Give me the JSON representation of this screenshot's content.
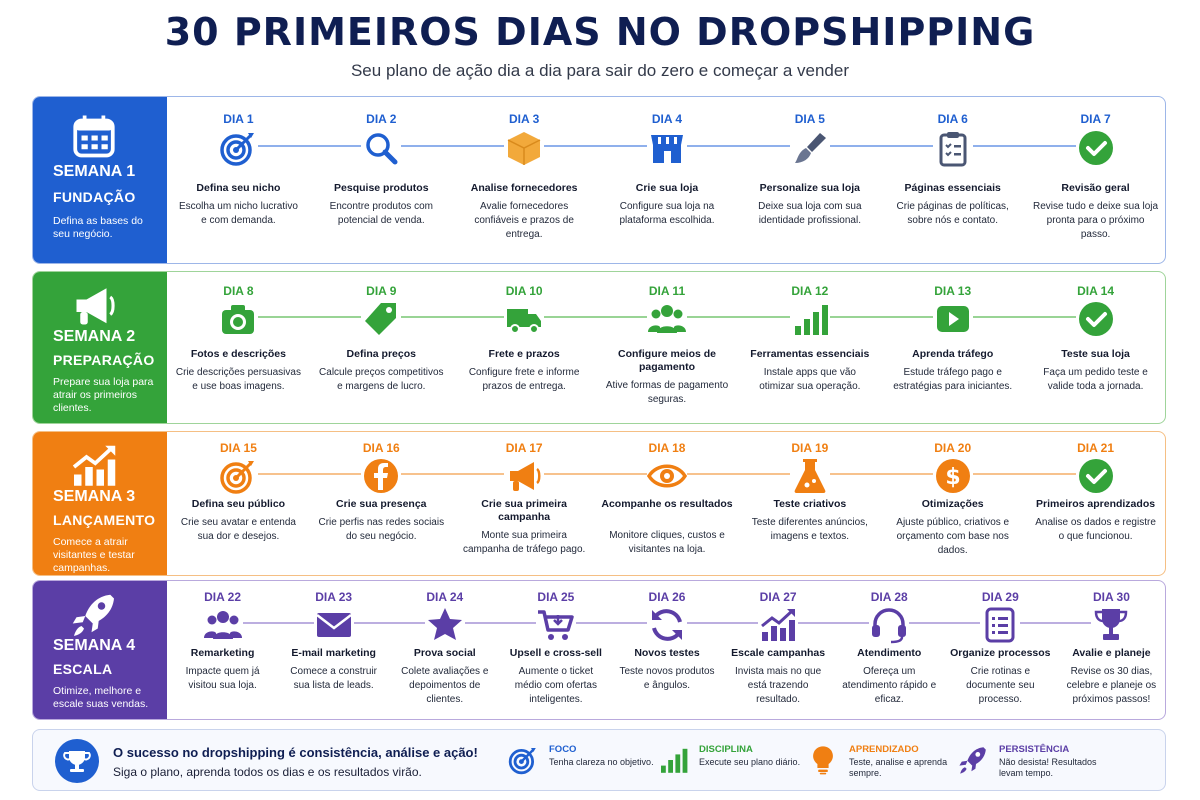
{
  "header": {
    "title": "30 PRIMEIROS DIAS NO DROPSHIPPING",
    "subtitle": "Seu plano de ação dia a dia para sair do zero e começar a vender"
  },
  "colors": {
    "week1": "#1f5fd0",
    "week2": "#34a33a",
    "week3": "#f07f12",
    "week4": "#5b3ea6",
    "title": "#0f1e52"
  },
  "weeks": [
    {
      "label": "SEMANA 1",
      "phase": "FUNDAÇÃO",
      "description": "Defina as bases do seu negócio.",
      "icon": "calendar-icon",
      "days": [
        {
          "day": "DIA 1",
          "title": "Defina seu nicho",
          "text": "Escolha um nicho lucrativo e com demanda.",
          "icon": "target-icon"
        },
        {
          "day": "DIA 2",
          "title": "Pesquise produtos",
          "text": "Encontre produtos com potencial de venda.",
          "icon": "search-icon"
        },
        {
          "day": "DIA 3",
          "title": "Analise fornecedores",
          "text": "Avalie fornecedores confiáveis e prazos de entrega.",
          "icon": "box-icon"
        },
        {
          "day": "DIA 4",
          "title": "Crie sua loja",
          "text": "Configure sua loja na plataforma escolhida.",
          "icon": "store-icon"
        },
        {
          "day": "DIA 5",
          "title": "Personalize sua loja",
          "text": "Deixe sua loja com sua identidade profissional.",
          "icon": "brush-icon"
        },
        {
          "day": "DIA 6",
          "title": "Páginas essenciais",
          "text": "Crie páginas de políticas, sobre nós e contato.",
          "icon": "clipboard-icon"
        },
        {
          "day": "DIA 7",
          "title": "Revisão geral",
          "text": "Revise tudo e deixe sua loja pronta para o próximo passo.",
          "icon": "check-icon"
        }
      ]
    },
    {
      "label": "SEMANA 2",
      "phase": "PREPARAÇÃO",
      "description": "Prepare sua loja para atrair os primeiros clientes.",
      "icon": "megaphone-icon",
      "days": [
        {
          "day": "DIA 8",
          "title": "Fotos e descrições",
          "text": "Crie descrições persuasivas e use boas imagens.",
          "icon": "camera-icon"
        },
        {
          "day": "DIA 9",
          "title": "Defina preços",
          "text": "Calcule preços competitivos e margens de lucro.",
          "icon": "tag-icon"
        },
        {
          "day": "DIA 10",
          "title": "Frete e prazos",
          "text": "Configure frete e informe prazos de entrega.",
          "icon": "truck-icon"
        },
        {
          "day": "DIA 11",
          "title": "Configure meios de pagamento",
          "text": "Ative formas de pagamento seguras.",
          "icon": "people-icon"
        },
        {
          "day": "DIA 12",
          "title": "Ferramentas essenciais",
          "text": "Instale apps que vão otimizar sua operação.",
          "icon": "bars-icon"
        },
        {
          "day": "DIA 13",
          "title": "Aprenda tráfego",
          "text": "Estude tráfego pago e estratégias para iniciantes.",
          "icon": "play-icon"
        },
        {
          "day": "DIA 14",
          "title": "Teste sua loja",
          "text": "Faça um pedido teste e valide toda a jornada.",
          "icon": "check-icon"
        }
      ]
    },
    {
      "label": "SEMANA 3",
      "phase": "LANÇAMENTO",
      "description": "Comece a atrair visitantes e testar campanhas.",
      "icon": "growth-chart-icon",
      "days": [
        {
          "day": "DIA 15",
          "title": "Defina seu público",
          "text": "Crie seu avatar e entenda sua dor e desejos.",
          "icon": "target-icon"
        },
        {
          "day": "DIA 16",
          "title": "Crie sua presença",
          "text": "Crie perfis nas redes sociais do seu negócio.",
          "icon": "facebook-icon"
        },
        {
          "day": "DIA 17",
          "title": "Crie sua primeira campanha",
          "text": "Monte sua primeira campanha de tráfego pago.",
          "icon": "megaphone-icon"
        },
        {
          "day": "DIA 18",
          "title": "Acompanhe os resultados",
          "text": "Monitore cliques, custos e visitantes na loja.",
          "icon": "eye-icon"
        },
        {
          "day": "DIA 19",
          "title": "Teste criativos",
          "text": "Teste diferentes anúncios, imagens e textos.",
          "icon": "flask-icon"
        },
        {
          "day": "DIA 20",
          "title": "Otimizações",
          "text": "Ajuste público, criativos e orçamento com base nos dados.",
          "icon": "dollar-icon"
        },
        {
          "day": "DIA 21",
          "title": "Primeiros aprendizados",
          "text": "Analise os dados e registre o que funcionou.",
          "icon": "check-icon"
        }
      ]
    },
    {
      "label": "SEMANA 4",
      "phase": "ESCALA",
      "description": "Otimize, melhore e escale suas vendas.",
      "icon": "rocket-icon",
      "days": [
        {
          "day": "DIA 22",
          "title": "Remarketing",
          "text": "Impacte quem já visitou sua loja.",
          "icon": "people-icon"
        },
        {
          "day": "DIA 23",
          "title": "E-mail marketing",
          "text": "Comece a construir sua lista de leads.",
          "icon": "envelope-icon"
        },
        {
          "day": "DIA 24",
          "title": "Prova social",
          "text": "Colete avaliações e depoimentos de clientes.",
          "icon": "star-icon"
        },
        {
          "day": "DIA 25",
          "title": "Upsell e cross-sell",
          "text": "Aumente o ticket médio com ofertas inteligentes.",
          "icon": "cart-icon"
        },
        {
          "day": "DIA 26",
          "title": "Novos testes",
          "text": "Teste novos produtos e ângulos.",
          "icon": "refresh-icon"
        },
        {
          "day": "DIA 27",
          "title": "Escale campanhas",
          "text": "Invista mais no que está trazendo resultado.",
          "icon": "growth-chart-icon"
        },
        {
          "day": "DIA 28",
          "title": "Atendimento",
          "text": "Ofereça um atendimento rápido e eficaz.",
          "icon": "headset-icon"
        },
        {
          "day": "DIA 29",
          "title": "Organize processos",
          "text": "Crie rotinas e documente seu processo.",
          "icon": "list-icon"
        },
        {
          "day": "DIA 30",
          "title": "Avalie e planeje",
          "text": "Revise os 30 dias, celebre e planeje os próximos passos!",
          "icon": "trophy-icon"
        }
      ]
    }
  ],
  "footer": {
    "headline": "O sucesso no dropshipping é consistência, análise e ação!",
    "tagline": "Siga o plano, aprenda todos os dias e os resultados virão.",
    "pillars": [
      {
        "title": "FOCO",
        "text": "Tenha clareza no objetivo.",
        "icon": "target-icon",
        "color": "#1f5fd0"
      },
      {
        "title": "DISCIPLINA",
        "text": "Execute seu plano diário.",
        "icon": "bars-icon",
        "color": "#34a33a"
      },
      {
        "title": "APRENDIZADO",
        "text": "Teste, analise e aprenda sempre.",
        "icon": "lightbulb-icon",
        "color": "#f07f12"
      },
      {
        "title": "PERSISTÊNCIA",
        "text": "Não desista! Resultados levam tempo.",
        "icon": "rocket-icon",
        "color": "#5b3ea6"
      }
    ]
  }
}
